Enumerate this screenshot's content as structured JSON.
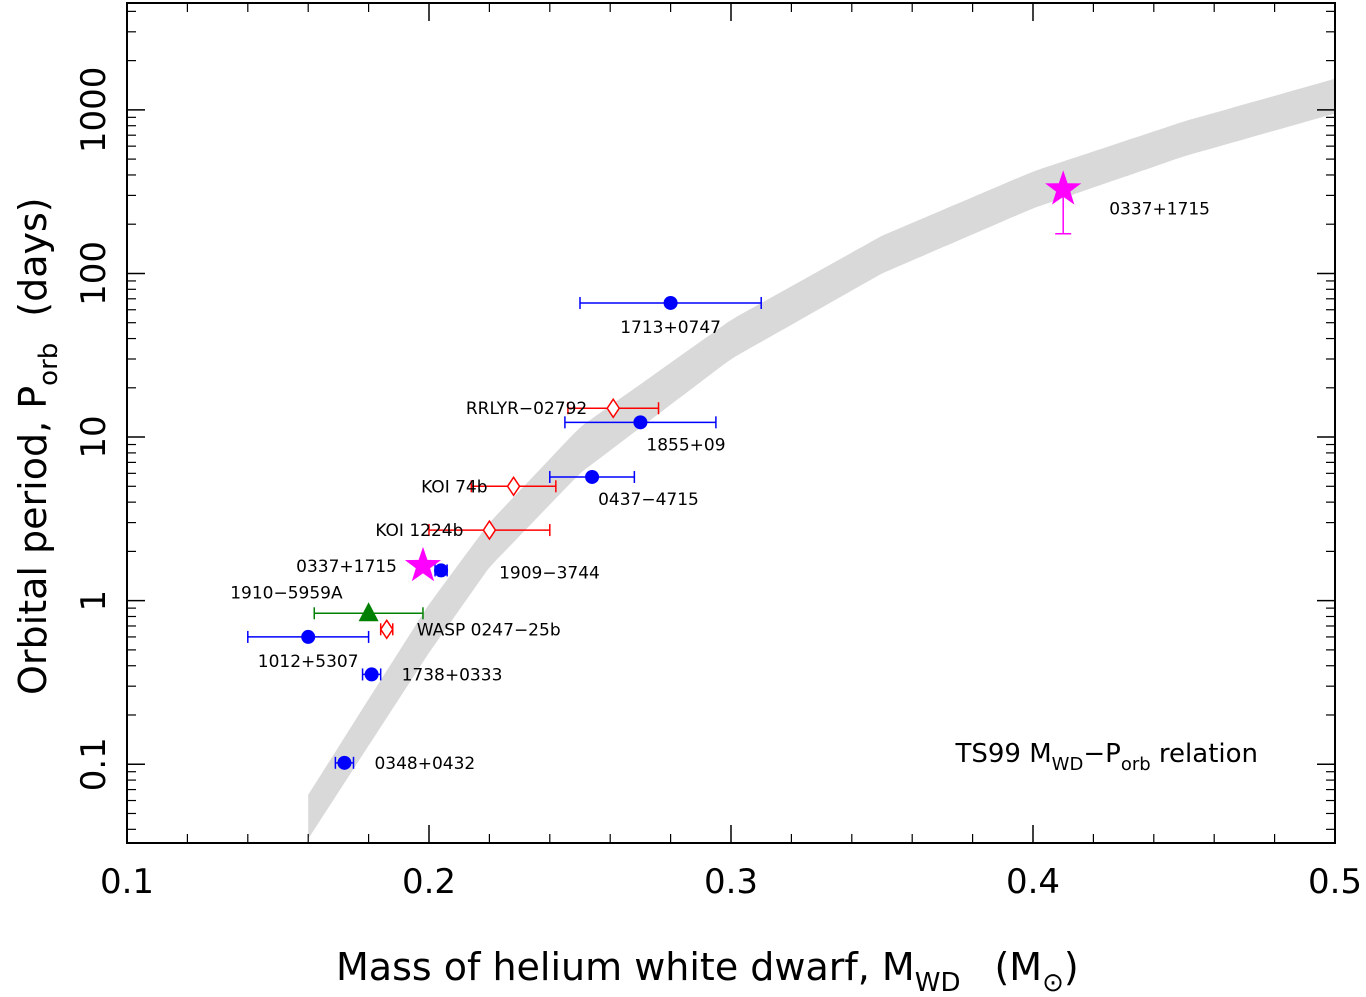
{
  "chart_data": {
    "type": "scatter",
    "xlabel": {
      "main": "Mass of helium white dwarf, M",
      "sub": "WD",
      "unit_open": "(M",
      "unit_close": ")"
    },
    "ylabel": {
      "main": "Orbital period, P",
      "sub": "orb",
      "unit": "(days)"
    },
    "xlim": [
      0.1,
      0.5
    ],
    "ylim": [
      0.033,
      4500
    ],
    "yscale": "log",
    "grid": false,
    "x_ticks": [
      {
        "value": 0.1,
        "label": "0.1"
      },
      {
        "value": 0.2,
        "label": "0.2"
      },
      {
        "value": 0.3,
        "label": "0.3"
      },
      {
        "value": 0.4,
        "label": "0.4"
      },
      {
        "value": 0.5,
        "label": "0.5"
      }
    ],
    "y_ticks": [
      {
        "value": 0.1,
        "label": "0.1"
      },
      {
        "value": 1,
        "label": "1"
      },
      {
        "value": 10,
        "label": "10"
      },
      {
        "value": 100,
        "label": "100"
      },
      {
        "value": 1000,
        "label": "1000"
      }
    ],
    "relation": {
      "label_main": "TS99 M",
      "label_sub1": "WD",
      "label_mid": "−P",
      "label_sub2": "orb",
      "label_end": " relation",
      "color": "#d9d9d9",
      "upper": [
        {
          "x": 0.16,
          "y": 0.065
        },
        {
          "x": 0.18,
          "y": 0.25
        },
        {
          "x": 0.2,
          "y": 0.95
        },
        {
          "x": 0.22,
          "y": 3.0
        },
        {
          "x": 0.25,
          "y": 11.5
        },
        {
          "x": 0.3,
          "y": 52
        },
        {
          "x": 0.35,
          "y": 170
        },
        {
          "x": 0.4,
          "y": 420
        },
        {
          "x": 0.45,
          "y": 850
        },
        {
          "x": 0.5,
          "y": 1550
        }
      ],
      "lower": [
        {
          "x": 0.16,
          "y": 0.035
        },
        {
          "x": 0.18,
          "y": 0.13
        },
        {
          "x": 0.2,
          "y": 0.48
        },
        {
          "x": 0.22,
          "y": 1.6
        },
        {
          "x": 0.25,
          "y": 6.0
        },
        {
          "x": 0.3,
          "y": 30
        },
        {
          "x": 0.35,
          "y": 100
        },
        {
          "x": 0.4,
          "y": 250
        },
        {
          "x": 0.45,
          "y": 520
        },
        {
          "x": 0.5,
          "y": 950
        }
      ]
    },
    "series": [
      {
        "marker": "circle",
        "color": "#0000ff",
        "points": [
          {
            "x": 0.28,
            "y": 66,
            "xerr": [
              0.25,
              0.31
            ],
            "label": "1713+0747",
            "label_pos": "below"
          },
          {
            "x": 0.27,
            "y": 12.3,
            "xerr": [
              0.245,
              0.295
            ],
            "label": "1855+09",
            "label_pos": "below-right"
          },
          {
            "x": 0.254,
            "y": 5.7,
            "xerr": [
              0.24,
              0.268
            ],
            "label": "0437−4715",
            "label_pos": "below-right"
          },
          {
            "x": 0.204,
            "y": 1.53,
            "xerr": [
              0.202,
              0.206
            ],
            "label": "1909−3744",
            "label_pos": "below-right-far"
          },
          {
            "x": 0.16,
            "y": 0.6,
            "xerr": [
              0.14,
              0.18
            ],
            "label": "1012+5307",
            "label_pos": "below"
          },
          {
            "x": 0.181,
            "y": 0.354,
            "xerr": [
              0.178,
              0.184
            ],
            "label": "1738+0333",
            "label_pos": "right"
          },
          {
            "x": 0.172,
            "y": 0.102,
            "xerr": [
              0.169,
              0.175
            ],
            "label": "0348+0432",
            "label_pos": "right"
          }
        ]
      },
      {
        "marker": "diamond",
        "color": "#ff0000",
        "points": [
          {
            "x": 0.261,
            "y": 15,
            "xerr": [
              0.246,
              0.276
            ],
            "label": "RRLYR−02792",
            "label_pos": "left"
          },
          {
            "x": 0.228,
            "y": 5.0,
            "xerr": [
              0.214,
              0.242
            ],
            "label": "KOI 74b",
            "label_pos": "left"
          },
          {
            "x": 0.22,
            "y": 2.7,
            "xerr": [
              0.2,
              0.24
            ],
            "label": "KOI 1224b",
            "label_pos": "left"
          },
          {
            "x": 0.186,
            "y": 0.668,
            "xerr": [
              0.184,
              0.188
            ],
            "label": "WASP 0247−25b",
            "label_pos": "right"
          }
        ]
      },
      {
        "marker": "star",
        "color": "#ff00ff",
        "points": [
          {
            "x": 0.41,
            "y": 327,
            "yerr": [
              175,
              327
            ],
            "label": "0337+1715",
            "label_pos": "right-low"
          },
          {
            "x": 0.198,
            "y": 1.63,
            "label": "0337+1715",
            "label_pos": "left"
          }
        ]
      },
      {
        "marker": "triangle",
        "color": "#008000",
        "points": [
          {
            "x": 0.18,
            "y": 0.837,
            "xerr": [
              0.162,
              0.198
            ],
            "label": "1910−5959A",
            "label_pos": "above-left"
          }
        ]
      }
    ]
  }
}
